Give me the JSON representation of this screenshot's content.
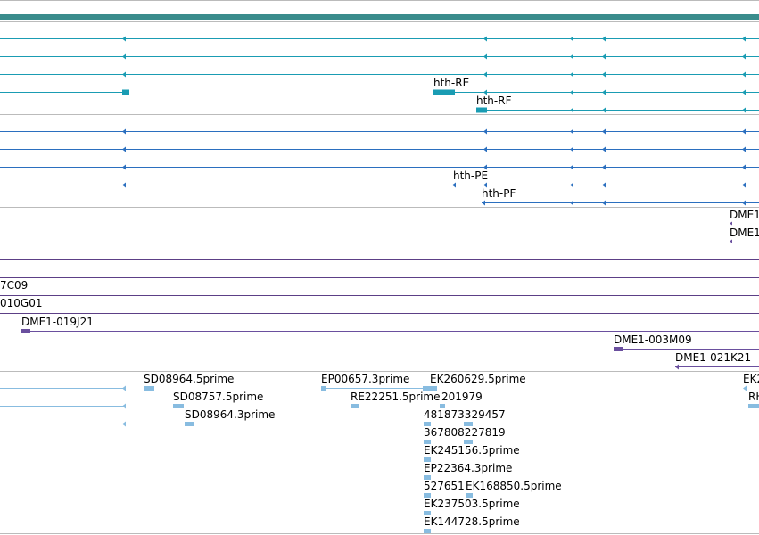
{
  "colors": {
    "top_band": "#3a8c8c",
    "track_divider": "#bbbbbb",
    "transcripts_r": "#1a9cb3",
    "transcripts_p": "#2b6fbf",
    "clones_a": "#6a4f9e",
    "clones_b": "#5c3f86",
    "est": "#88bce0"
  },
  "transcripts_r": {
    "labels": [
      "hth-RE",
      "hth-RF"
    ]
  },
  "transcripts_p": {
    "labels": [
      "hth-PE",
      "hth-PF"
    ]
  },
  "clones_upper": {
    "labels": [
      "DME1",
      "DME1"
    ]
  },
  "clones_lower": {
    "labels": [
      "7C09",
      "010G01",
      "DME1-019J21",
      "DME1-003M09",
      "DME1-021K21"
    ]
  },
  "est_features": {
    "labels": [
      "SD08964.5prime",
      "SD08757.5prime",
      "SD08964.3prime",
      "EP00657.3prime",
      "EK260629.5prime",
      "RE22251.5prime",
      "201979",
      "481873329457",
      "367808227819",
      "EK245156.5prime",
      "EP22364.3prime",
      "527651",
      "EK168850.5prime",
      "EK237503.5prime",
      "EK144728.5prime",
      "EK2",
      "RH"
    ]
  }
}
